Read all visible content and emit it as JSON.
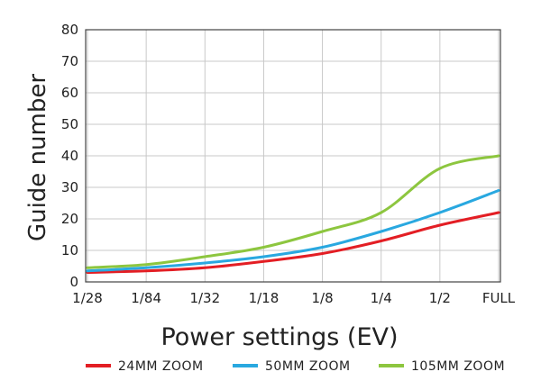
{
  "chart_data": {
    "type": "line",
    "title": "",
    "xlabel": "Power settings (EV)",
    "ylabel": "Guide number",
    "categories": [
      "1/28",
      "1/84",
      "1/32",
      "1/18",
      "1/8",
      "1/4",
      "1/2",
      "FULL"
    ],
    "ylim": [
      0,
      80
    ],
    "yticks": [
      0,
      10,
      20,
      30,
      40,
      50,
      60,
      70,
      80
    ],
    "grid": true,
    "legend_position": "bottom",
    "series": [
      {
        "name": "24MM ZOOM",
        "color": "#e31e24",
        "values": [
          3,
          3.5,
          4.5,
          6.5,
          9,
          13,
          18,
          22
        ]
      },
      {
        "name": "50MM ZOOM",
        "color": "#29a8e0",
        "values": [
          3.5,
          4.5,
          6,
          8,
          11,
          16,
          22,
          29
        ]
      },
      {
        "name": "105MM ZOOM",
        "color": "#8dc63f",
        "values": [
          4.5,
          5.5,
          8,
          11,
          16,
          22,
          36,
          40
        ]
      }
    ]
  }
}
